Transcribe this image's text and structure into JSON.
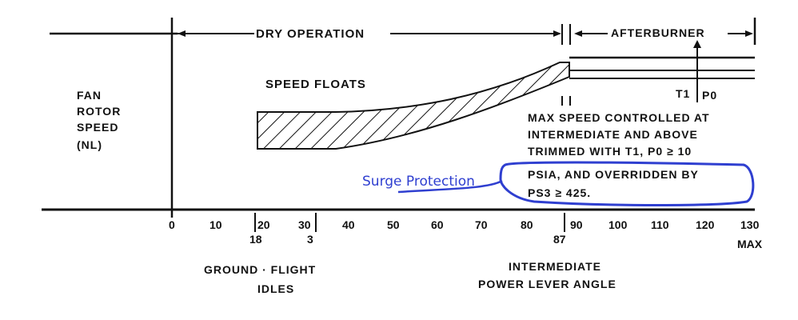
{
  "header": {
    "dry_operation": "DRY OPERATION",
    "afterburner": "AFTERBURNER"
  },
  "y_label": [
    "FAN",
    "ROTOR",
    "SPEED",
    "(NL)"
  ],
  "region_label": "SPEED FLOATS",
  "afterburner_params": {
    "t1": "T1",
    "p0": "P0"
  },
  "note_lines": [
    "MAX SPEED CONTROLLED AT",
    "INTERMEDIATE AND ABOVE",
    "TRIMMED WITH T1, P0 ≥ 10",
    "PSIA, AND OVERRIDDEN BY",
    "PS3 ≥ 425."
  ],
  "annotation": {
    "text": "Surge Protection",
    "color": "#2f3fd0"
  },
  "x_axis": {
    "ticks": [
      "0",
      "10",
      "20",
      "30",
      "40",
      "50",
      "60",
      "70",
      "80",
      "90",
      "100",
      "110",
      "120",
      "130"
    ],
    "sub_ticks": [
      "18",
      "3",
      "87"
    ],
    "max_label": "MAX",
    "ground_flight": "GROUND · FLIGHT",
    "idles": "IDLES",
    "intermediate": "INTERMEDIATE",
    "plv_title": "POWER LEVER ANGLE"
  }
}
